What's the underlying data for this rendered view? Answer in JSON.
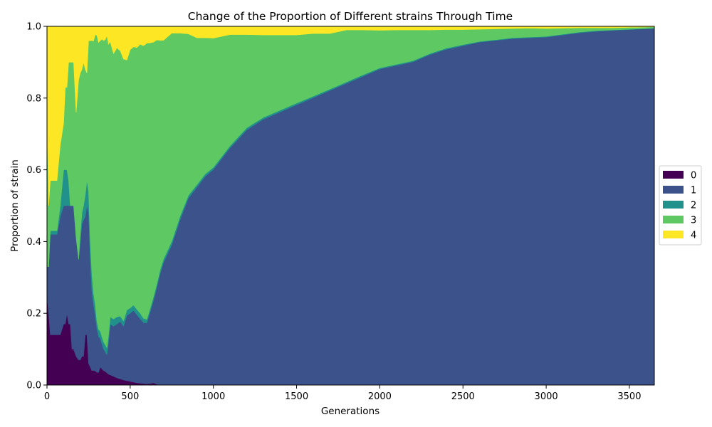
{
  "chart_data": {
    "type": "area",
    "stacked": true,
    "normalized": true,
    "title": "Change of the Proportion of Different strains Through Time",
    "xlabel": "Generations",
    "ylabel": "Proportion of strain",
    "xlim": [
      0,
      3650
    ],
    "ylim": [
      0,
      1
    ],
    "xticks": [
      "0",
      "500",
      "1000",
      "1500",
      "2000",
      "2500",
      "3000",
      "3500"
    ],
    "yticks": [
      "0.0",
      "0.2",
      "0.4",
      "0.6",
      "0.8",
      "1.0"
    ],
    "grid": false,
    "legend_position": "center-right",
    "legend_labels": [
      "0",
      "1",
      "2",
      "3",
      "4"
    ],
    "colors": [
      "#440154",
      "#3b528b",
      "#21918c",
      "#5ec962",
      "#fde725"
    ],
    "x": [
      0,
      10,
      20,
      40,
      60,
      80,
      100,
      110,
      120,
      130,
      140,
      150,
      160,
      175,
      190,
      200,
      210,
      220,
      230,
      240,
      250,
      260,
      270,
      280,
      290,
      300,
      310,
      320,
      330,
      340,
      350,
      360,
      370,
      380,
      400,
      420,
      440,
      460,
      480,
      500,
      520,
      540,
      560,
      580,
      600,
      620,
      640,
      660,
      680,
      700,
      750,
      800,
      850,
      900,
      950,
      1000,
      1100,
      1200,
      1300,
      1400,
      1500,
      1600,
      1700,
      1800,
      1900,
      2000,
      2100,
      2200,
      2300,
      2400,
      2500,
      2600,
      2700,
      2800,
      2900,
      3000,
      3100,
      3200,
      3300,
      3400,
      3500,
      3600,
      3650
    ],
    "series": [
      {
        "name": "0",
        "values": [
          0.25,
          0.2,
          0.14,
          0.14,
          0.14,
          0.14,
          0.17,
          0.17,
          0.2,
          0.17,
          0.17,
          0.1,
          0.1,
          0.08,
          0.07,
          0.07,
          0.08,
          0.08,
          0.14,
          0.14,
          0.06,
          0.05,
          0.04,
          0.04,
          0.038,
          0.035,
          0.035,
          0.05,
          0.045,
          0.04,
          0.038,
          0.034,
          0.03,
          0.028,
          0.024,
          0.02,
          0.017,
          0.014,
          0.012,
          0.01,
          0.008,
          0.006,
          0.005,
          0.004,
          0.003,
          0.004,
          0.006,
          0.002,
          0.001,
          0.001,
          0.001,
          0.001,
          0.001,
          0.001,
          0.001,
          0.001,
          0.001,
          0.001,
          0.001,
          0.001,
          0.001,
          0.001,
          0.001,
          0.001,
          0.001,
          0.001,
          0.001,
          0.001,
          0.001,
          0.001,
          0.001,
          0.001,
          0.001,
          0.001,
          0.001,
          0.001,
          0.001,
          0.001,
          0.001,
          0.001,
          0.001,
          0.001,
          0.001
        ]
      },
      {
        "name": "1",
        "values": [
          0.08,
          0.13,
          0.28,
          0.28,
          0.28,
          0.33,
          0.33,
          0.33,
          0.3,
          0.33,
          0.33,
          0.4,
          0.4,
          0.33,
          0.28,
          0.33,
          0.37,
          0.38,
          0.33,
          0.36,
          0.42,
          0.3,
          0.22,
          0.18,
          0.15,
          0.12,
          0.1,
          0.08,
          0.07,
          0.06,
          0.055,
          0.05,
          0.09,
          0.14,
          0.14,
          0.15,
          0.16,
          0.15,
          0.18,
          0.19,
          0.2,
          0.19,
          0.18,
          0.17,
          0.17,
          0.2,
          0.23,
          0.27,
          0.31,
          0.34,
          0.39,
          0.46,
          0.52,
          0.55,
          0.58,
          0.6,
          0.66,
          0.71,
          0.74,
          0.76,
          0.78,
          0.8,
          0.82,
          0.84,
          0.86,
          0.88,
          0.89,
          0.9,
          0.92,
          0.935,
          0.945,
          0.955,
          0.96,
          0.965,
          0.967,
          0.97,
          0.975,
          0.98,
          0.985,
          0.988,
          0.99,
          0.992,
          0.993
        ]
      },
      {
        "name": "2",
        "values": [
          0.0,
          0.0,
          0.01,
          0.01,
          0.01,
          0.03,
          0.1,
          0.1,
          0.1,
          0.07,
          0.0,
          0.0,
          0.0,
          0.0,
          0.0,
          0.02,
          0.03,
          0.04,
          0.06,
          0.07,
          0.06,
          0.05,
          0.05,
          0.03,
          0.03,
          0.02,
          0.02,
          0.02,
          0.02,
          0.02,
          0.02,
          0.02,
          0.02,
          0.02,
          0.02,
          0.02,
          0.015,
          0.015,
          0.015,
          0.015,
          0.015,
          0.015,
          0.015,
          0.012,
          0.01,
          0.01,
          0.01,
          0.01,
          0.01,
          0.01,
          0.01,
          0.01,
          0.008,
          0.007,
          0.007,
          0.006,
          0.006,
          0.006,
          0.005,
          0.005,
          0.005,
          0.004,
          0.004,
          0.004,
          0.004,
          0.003,
          0.003,
          0.003,
          0.003,
          0.003,
          0.003,
          0.002,
          0.002,
          0.002,
          0.002,
          0.002,
          0.002,
          0.002,
          0.002,
          0.001,
          0.001,
          0.001,
          0.001
        ]
      },
      {
        "name": "3",
        "values": [
          0.42,
          0.17,
          0.14,
          0.14,
          0.14,
          0.17,
          0.13,
          0.23,
          0.23,
          0.33,
          0.4,
          0.4,
          0.4,
          0.35,
          0.5,
          0.45,
          0.4,
          0.4,
          0.35,
          0.3,
          0.42,
          0.56,
          0.65,
          0.69,
          0.73,
          0.79,
          0.8,
          0.81,
          0.83,
          0.84,
          0.85,
          0.87,
          0.81,
          0.76,
          0.74,
          0.75,
          0.74,
          0.73,
          0.69,
          0.72,
          0.72,
          0.73,
          0.75,
          0.76,
          0.77,
          0.74,
          0.71,
          0.68,
          0.64,
          0.61,
          0.58,
          0.51,
          0.45,
          0.41,
          0.38,
          0.36,
          0.31,
          0.26,
          0.23,
          0.21,
          0.19,
          0.175,
          0.155,
          0.145,
          0.125,
          0.105,
          0.096,
          0.086,
          0.066,
          0.052,
          0.042,
          0.034,
          0.03,
          0.026,
          0.025,
          0.022,
          0.017,
          0.012,
          0.008,
          0.006,
          0.005,
          0.004,
          0.004
        ]
      },
      {
        "name": "4",
        "values": [
          0.25,
          0.5,
          0.43,
          0.43,
          0.43,
          0.33,
          0.27,
          0.17,
          0.17,
          0.1,
          0.1,
          0.1,
          0.1,
          0.24,
          0.15,
          0.13,
          0.12,
          0.1,
          0.12,
          0.13,
          0.04,
          0.04,
          0.04,
          0.04,
          0.022,
          0.025,
          0.045,
          0.04,
          0.035,
          0.04,
          0.037,
          0.026,
          0.05,
          0.042,
          0.076,
          0.06,
          0.068,
          0.091,
          0.093,
          0.065,
          0.057,
          0.059,
          0.05,
          0.054,
          0.047,
          0.046,
          0.044,
          0.038,
          0.039,
          0.039,
          0.019,
          0.019,
          0.021,
          0.032,
          0.032,
          0.033,
          0.023,
          0.023,
          0.024,
          0.024,
          0.024,
          0.02,
          0.02,
          0.01,
          0.01,
          0.011,
          0.01,
          0.01,
          0.01,
          0.009,
          0.009,
          0.008,
          0.007,
          0.006,
          0.005,
          0.006,
          0.005,
          0.004,
          0.004,
          0.004,
          0.003,
          0.002,
          0.001
        ]
      }
    ]
  }
}
